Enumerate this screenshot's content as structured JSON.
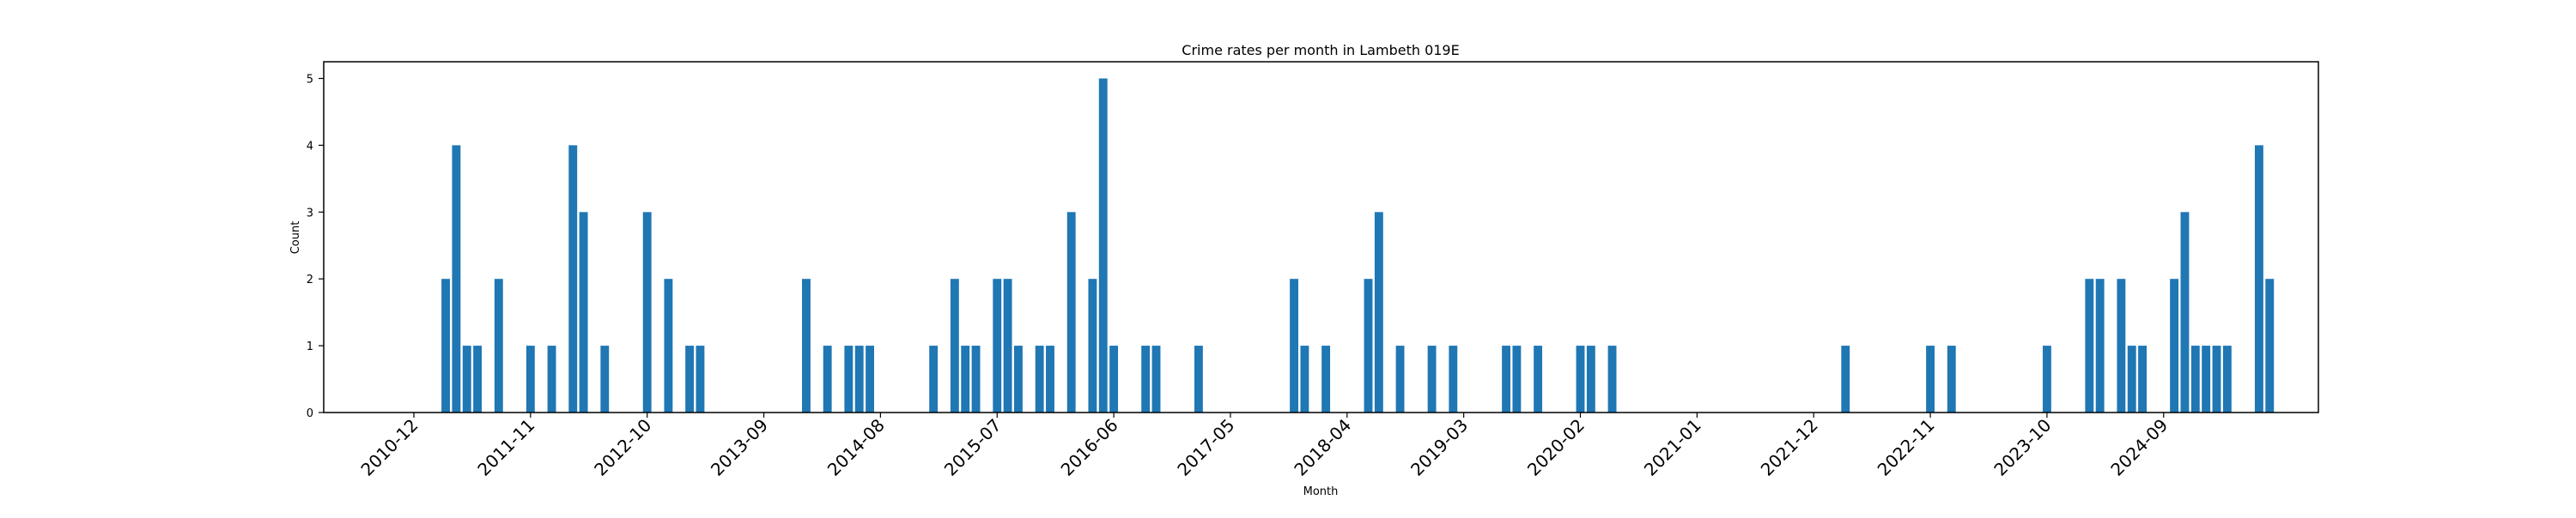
{
  "chart_data": {
    "type": "bar",
    "title": "Crime rates per month in Lambeth 019E",
    "xlabel": "Month",
    "ylabel": "Count",
    "ylim": [
      0,
      5.25
    ],
    "yticks": [
      0,
      1,
      2,
      3,
      4,
      5
    ],
    "xticks": [
      "2010-12",
      "2011-11",
      "2012-10",
      "2013-09",
      "2014-08",
      "2015-07",
      "2016-06",
      "2017-05",
      "2018-04",
      "2019-03",
      "2020-02",
      "2021-01",
      "2021-12",
      "2022-11",
      "2023-10",
      "2024-09"
    ],
    "grid": false,
    "bar_color": "#1f77b4",
    "x": [
      "2011-03",
      "2011-04",
      "2011-05",
      "2011-06",
      "2011-08",
      "2011-11",
      "2012-01",
      "2012-03",
      "2012-04",
      "2012-06",
      "2012-10",
      "2012-12",
      "2013-02",
      "2013-03",
      "2014-01",
      "2014-03",
      "2014-05",
      "2014-06",
      "2014-07",
      "2015-01",
      "2015-03",
      "2015-04",
      "2015-05",
      "2015-07",
      "2015-08",
      "2015-09",
      "2015-11",
      "2015-12",
      "2016-02",
      "2016-04",
      "2016-05",
      "2016-06",
      "2016-09",
      "2016-10",
      "2017-02",
      "2017-11",
      "2017-12",
      "2018-02",
      "2018-06",
      "2018-07",
      "2018-09",
      "2018-12",
      "2019-02",
      "2019-07",
      "2019-08",
      "2019-10",
      "2020-02",
      "2020-03",
      "2020-05",
      "2022-03",
      "2022-11",
      "2023-01",
      "2023-10",
      "2024-02",
      "2024-03",
      "2024-05",
      "2024-06",
      "2024-07",
      "2024-10",
      "2024-11",
      "2024-12",
      "2025-01",
      "2025-02",
      "2025-03",
      "2025-06",
      "2025-07"
    ],
    "values": [
      2,
      4,
      1,
      1,
      2,
      1,
      1,
      4,
      3,
      1,
      3,
      2,
      1,
      1,
      2,
      1,
      1,
      1,
      1,
      1,
      2,
      1,
      1,
      2,
      2,
      1,
      1,
      1,
      3,
      2,
      5,
      1,
      1,
      1,
      1,
      2,
      1,
      1,
      2,
      3,
      1,
      1,
      1,
      1,
      1,
      1,
      1,
      1,
      1,
      1,
      1,
      1,
      1,
      2,
      2,
      2,
      1,
      1,
      2,
      3,
      1,
      1,
      1,
      1,
      4,
      2
    ]
  }
}
